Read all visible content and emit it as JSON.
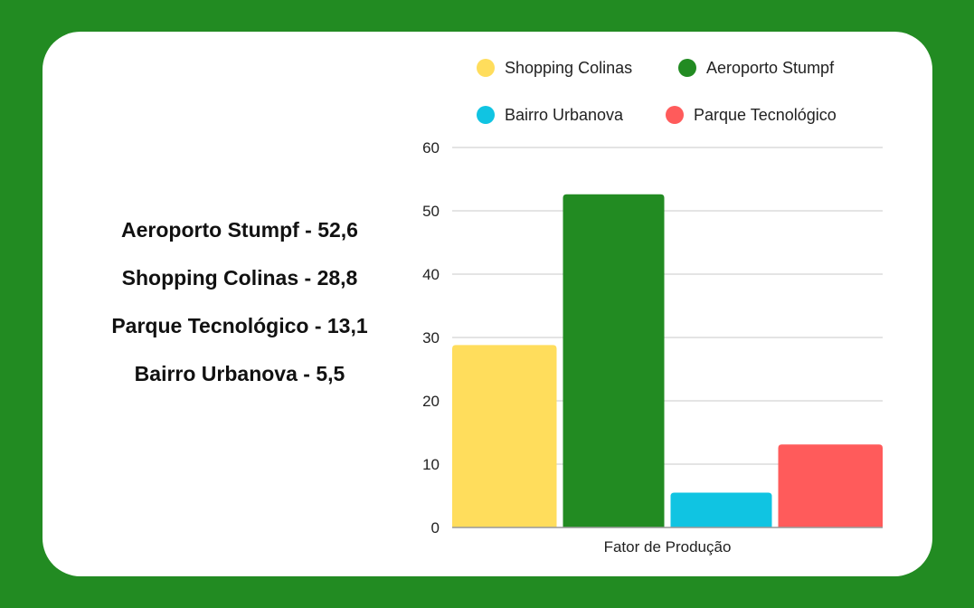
{
  "summary": {
    "items": [
      "Aeroporto Stumpf - 52,6",
      "Shopping Colinas - 28,8",
      "Parque Tecnológico - 13,1",
      "Bairro Urbanova - 5,5"
    ]
  },
  "chart_data": {
    "type": "bar",
    "title": "",
    "xlabel": "Fator de Produção",
    "ylabel": "",
    "ylim": [
      0,
      60
    ],
    "yticks": [
      0,
      10,
      20,
      30,
      40,
      50,
      60
    ],
    "grid": true,
    "legend_position": "top",
    "categories": [
      "Fator de Produção"
    ],
    "series": [
      {
        "name": "Shopping Colinas",
        "values": [
          28.8
        ],
        "color": "#ffdd5c"
      },
      {
        "name": "Aeroporto Stumpf",
        "values": [
          52.6
        ],
        "color": "#228b22"
      },
      {
        "name": "Bairro Urbanova",
        "values": [
          5.5
        ],
        "color": "#10c4e2"
      },
      {
        "name": "Parque Tecnológico",
        "values": [
          13.1
        ],
        "color": "#ff5b5b"
      }
    ]
  },
  "colors": {
    "background": "#228b22",
    "card": "#ffffff",
    "grid": "#c8c8c8",
    "axis": "#999999"
  }
}
